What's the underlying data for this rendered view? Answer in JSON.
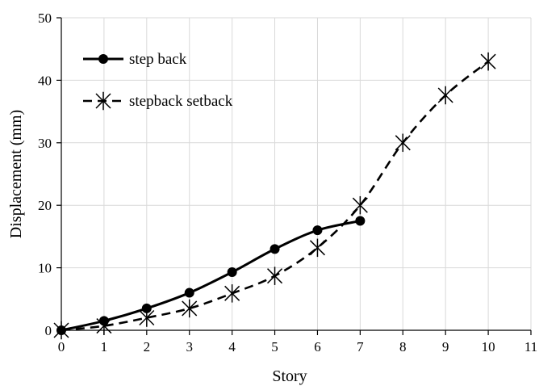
{
  "chart_data": {
    "type": "line",
    "xlabel": "Story",
    "ylabel": "Displacement (mm)",
    "xlim": [
      0,
      11
    ],
    "ylim": [
      0,
      50
    ],
    "x_ticks": [
      0,
      1,
      2,
      3,
      4,
      5,
      6,
      7,
      8,
      9,
      10,
      11
    ],
    "y_ticks": [
      0,
      10,
      20,
      30,
      40,
      50
    ],
    "grid": true,
    "legend_position": "top-left",
    "series": [
      {
        "name": "step back",
        "style": "solid",
        "marker": "circle",
        "color": "#000000",
        "x": [
          0,
          1,
          2,
          3,
          4,
          5,
          6,
          7
        ],
        "y": [
          0,
          1.5,
          3.5,
          6,
          9.3,
          13,
          16,
          17.5
        ]
      },
      {
        "name": "stepback setback",
        "style": "dashed",
        "marker": "asterisk",
        "color": "#000000",
        "x": [
          0,
          1,
          2,
          3,
          4,
          5,
          6,
          7,
          8,
          9,
          10
        ],
        "y": [
          0,
          0.7,
          2,
          3.5,
          5.9,
          8.7,
          13.2,
          20,
          30,
          37.6,
          43
        ]
      }
    ]
  }
}
